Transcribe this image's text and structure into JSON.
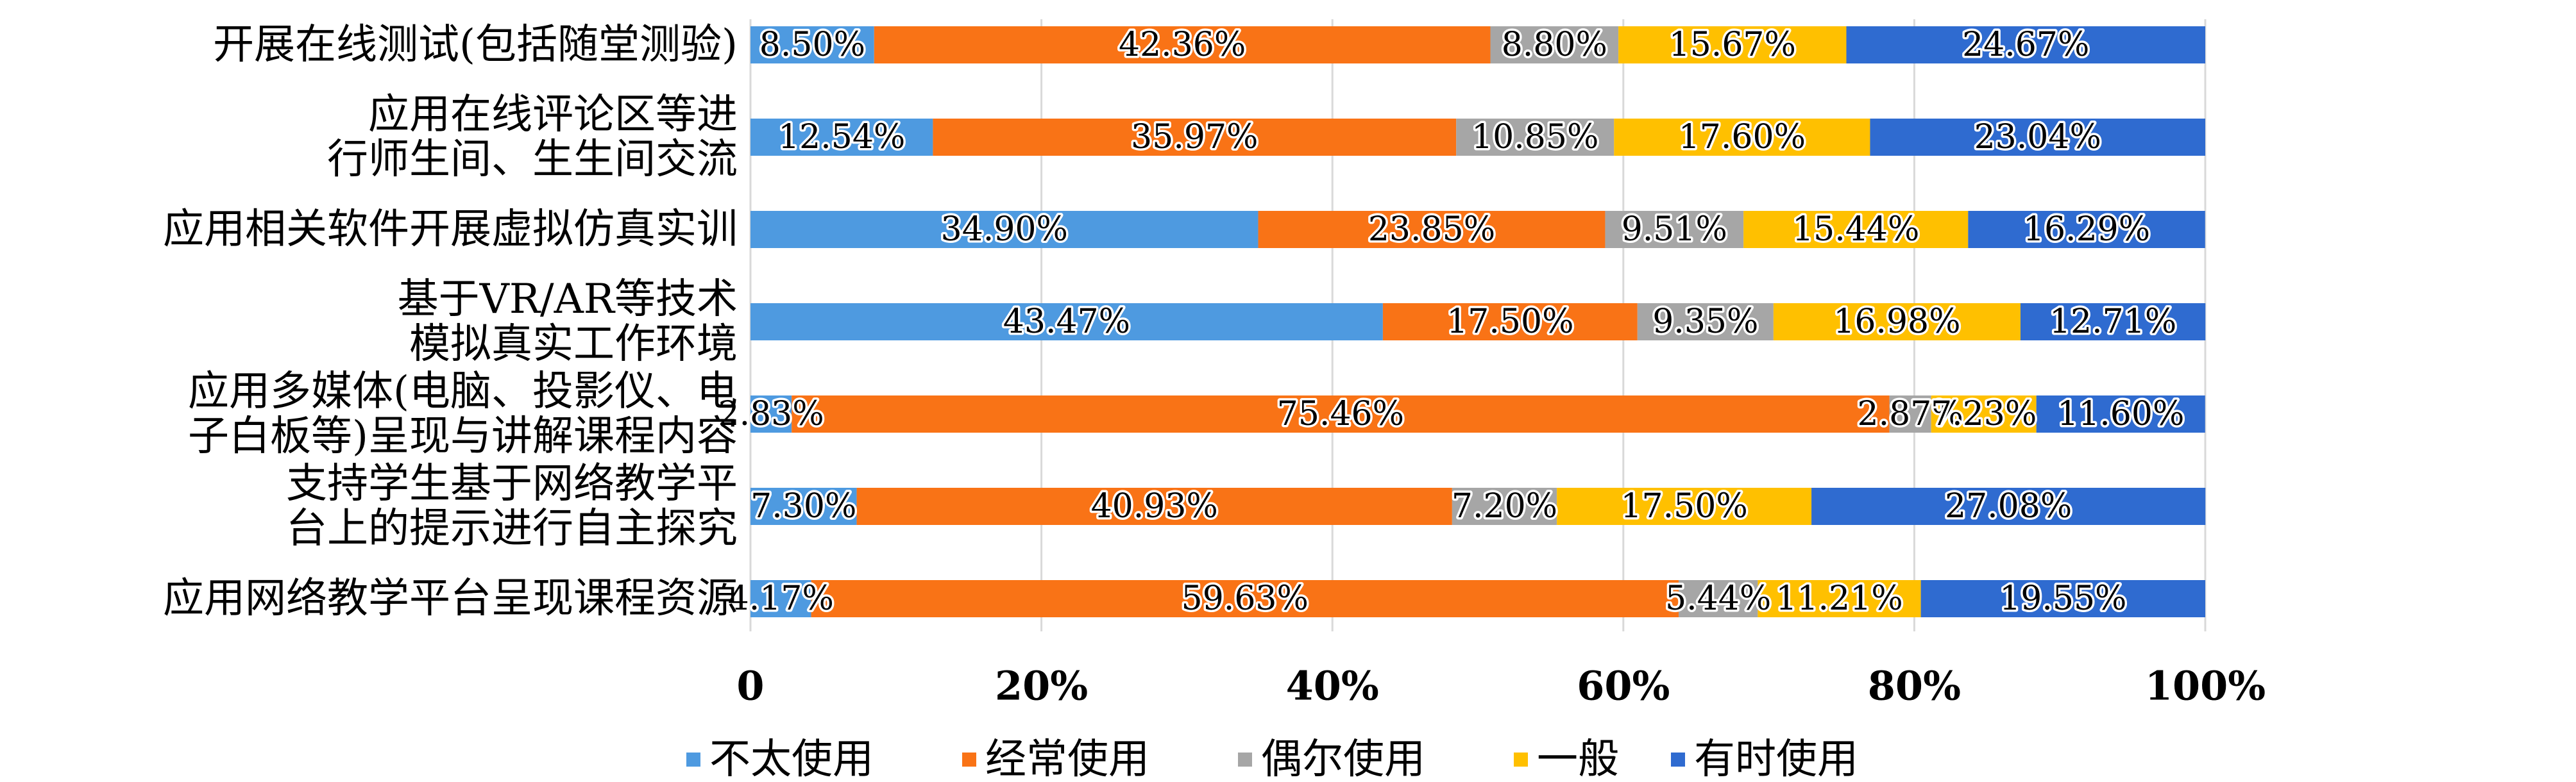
{
  "chart_data": {
    "type": "bar",
    "orientation": "horizontal",
    "stacked": "percent",
    "categories": [
      [
        "开展在线测试(包括随堂测验)"
      ],
      [
        "应用在线评论区等进",
        "行师生间、生生间交流"
      ],
      [
        "应用相关软件开展虚拟仿真实训"
      ],
      [
        "基于VR/AR等技术",
        "模拟真实工作环境"
      ],
      [
        "应用多媒体(电脑、投影仪、电",
        "子白板等)呈现与讲解课程内容"
      ],
      [
        "支持学生基于网络教学平",
        "台上的提示进行自主探究"
      ],
      [
        "应用网络教学平台呈现课程资源"
      ]
    ],
    "series": [
      {
        "name": "不太使用",
        "color": "#4e9ae0",
        "values": [
          8.5,
          12.54,
          34.9,
          43.47,
          2.83,
          7.3,
          4.17
        ]
      },
      {
        "name": "经常使用",
        "color": "#f97316",
        "values": [
          42.36,
          35.97,
          23.85,
          17.5,
          75.46,
          40.93,
          59.63
        ]
      },
      {
        "name": "偶尔使用",
        "color": "#a6a6a6",
        "values": [
          8.8,
          10.85,
          9.51,
          9.35,
          2.87,
          7.2,
          5.44
        ]
      },
      {
        "name": "一般",
        "color": "#ffc000",
        "values": [
          15.67,
          17.6,
          15.44,
          16.98,
          7.23,
          17.5,
          11.21
        ]
      },
      {
        "name": "有时使用",
        "color": "#2f6bd0",
        "values": [
          24.67,
          23.04,
          16.29,
          12.71,
          11.6,
          27.08,
          19.55
        ]
      }
    ],
    "value_labels": [
      [
        "8.50%",
        "12.54%",
        "34.90%",
        "43.47%",
        "2.83%",
        "7.30%",
        "4.17%"
      ],
      [
        "42.36%",
        "35.97%",
        "23.85%",
        "17.50%",
        "75.46%",
        "40.93%",
        "59.63%"
      ],
      [
        "8.80%",
        "10.85%",
        "9.51%",
        "9.35%",
        "2.87%",
        "7.20%",
        "5.44%"
      ],
      [
        "15.67%",
        "17.60%",
        "15.44%",
        "16.98%",
        "7.23%",
        "17.50%",
        "11.21%"
      ],
      [
        "24.67%",
        "23.04%",
        "16.29%",
        "12.71%",
        "11.60%",
        "27.08%",
        "19.55%"
      ]
    ],
    "x_ticks": [
      0,
      20,
      40,
      60,
      80,
      100
    ],
    "x_tick_labels": [
      "0",
      "20%",
      "40%",
      "60%",
      "80%",
      "100%"
    ],
    "xlim": [
      0,
      100
    ],
    "title": "",
    "xlabel": "",
    "ylabel": "",
    "grid": true,
    "legend_position": "bottom"
  }
}
